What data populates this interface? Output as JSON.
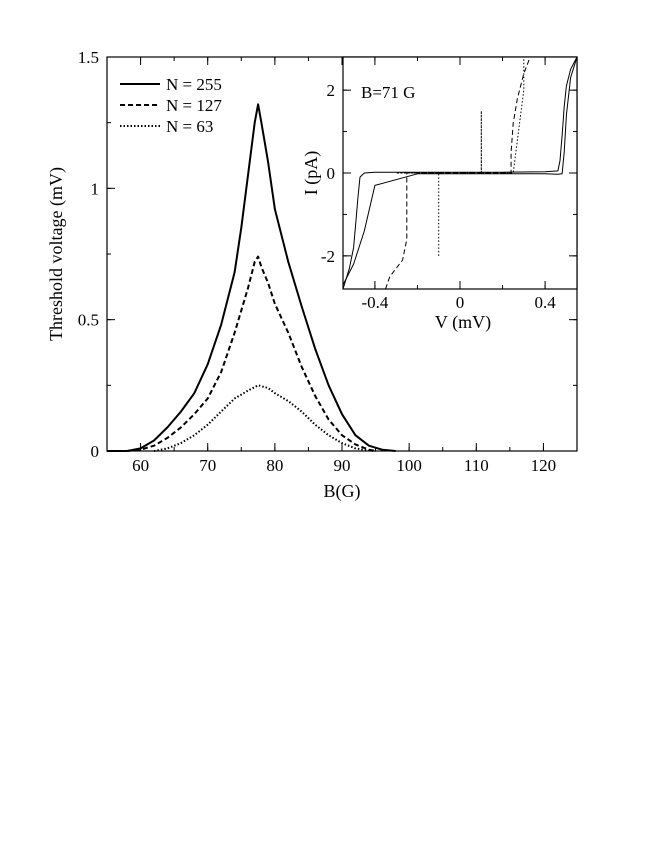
{
  "chart_data": [
    {
      "type": "line",
      "xlabel": "B(G)",
      "ylabel": "Threshold voltage (mV)",
      "xlim": [
        55,
        125
      ],
      "ylim": [
        0,
        1.5
      ],
      "x_ticks": [
        "60",
        "70",
        "80",
        "90",
        "100",
        "110",
        "120"
      ],
      "y_ticks": [
        "0",
        "0.5",
        "1",
        "1.5"
      ],
      "legend_position": "top-left",
      "series": [
        {
          "name": "N = 255",
          "style": "solid",
          "x": [
            55,
            58,
            60,
            62,
            64,
            66,
            68,
            70,
            72,
            74,
            75,
            76,
            77,
            77.5,
            78,
            79,
            80,
            82,
            84,
            86,
            88,
            90,
            92,
            94,
            96,
            98
          ],
          "y": [
            0,
            0,
            0.01,
            0.04,
            0.09,
            0.15,
            0.22,
            0.33,
            0.48,
            0.68,
            0.85,
            1.05,
            1.25,
            1.32,
            1.25,
            1.1,
            0.92,
            0.72,
            0.55,
            0.39,
            0.25,
            0.14,
            0.06,
            0.02,
            0.005,
            0
          ]
        },
        {
          "name": "N = 127",
          "style": "dashed",
          "x": [
            58,
            60,
            62,
            64,
            66,
            68,
            70,
            72,
            74,
            76,
            77,
            77.5,
            78,
            79,
            80,
            82,
            84,
            86,
            88,
            90,
            92,
            94,
            95
          ],
          "y": [
            0,
            0.005,
            0.02,
            0.05,
            0.09,
            0.14,
            0.2,
            0.3,
            0.45,
            0.62,
            0.72,
            0.74,
            0.7,
            0.64,
            0.56,
            0.45,
            0.32,
            0.21,
            0.12,
            0.06,
            0.025,
            0.005,
            0
          ]
        },
        {
          "name": "N = 63",
          "style": "dotted",
          "x": [
            62,
            64,
            66,
            68,
            70,
            72,
            74,
            76,
            77.5,
            79,
            80,
            82,
            84,
            86,
            88,
            90,
            92,
            94,
            95
          ],
          "y": [
            0,
            0.01,
            0.03,
            0.06,
            0.1,
            0.15,
            0.2,
            0.23,
            0.25,
            0.24,
            0.22,
            0.19,
            0.15,
            0.1,
            0.06,
            0.03,
            0.01,
            0.002,
            0
          ]
        }
      ]
    },
    {
      "type": "line",
      "annotation": "B=71 G",
      "xlabel": "V (mV)",
      "ylabel": "I (pA)",
      "xlim": [
        -0.55,
        0.55
      ],
      "ylim": [
        -2.8,
        2.8
      ],
      "x_ticks": [
        "-0.4",
        "0",
        "0.4"
      ],
      "y_ticks": [
        "-2",
        "0",
        "2"
      ],
      "series": [
        {
          "style": "solid",
          "x": [
            -0.55,
            -0.52,
            -0.5,
            -0.49,
            -0.48,
            -0.47,
            -0.45,
            -0.4,
            -0.2,
            0,
            0.2,
            0.4,
            0.46,
            0.47,
            0.48,
            0.49,
            0.5,
            0.52,
            0.55
          ],
          "y": [
            -2.8,
            -2.3,
            -1.8,
            -1.2,
            -0.6,
            -0.1,
            0,
            0.02,
            0.02,
            0.02,
            0.02,
            0.03,
            0.05,
            0.3,
            0.9,
            1.6,
            2.1,
            2.5,
            2.8
          ]
        },
        {
          "style": "solid",
          "x": [
            -0.55,
            -0.5,
            -0.45,
            -0.4,
            -0.2,
            0,
            0.2,
            0.4,
            0.46,
            0.48,
            0.49,
            0.5,
            0.52,
            0.55
          ],
          "y": [
            -2.7,
            -2.2,
            -1.4,
            -0.3,
            -0.02,
            -0.02,
            -0.02,
            -0.02,
            -0.03,
            -0.02,
            0.5,
            1.4,
            2.3,
            2.8
          ],
          "style_note": ""
        },
        {
          "style": "dashed",
          "x": [
            -0.35,
            -0.33,
            -0.3,
            -0.27,
            -0.25,
            -0.25,
            -0.25,
            0.1,
            0.24,
            0.24,
            0.25,
            0.27,
            0.3,
            0.33
          ],
          "y": [
            -2.8,
            -2.5,
            -2.3,
            -2.1,
            -1.6,
            -0.5,
            0,
            0,
            0,
            0.5,
            1.2,
            1.8,
            2.4,
            2.8
          ]
        },
        {
          "style": "dotted",
          "x": [
            -0.1,
            -0.1,
            -0.1,
            -0.3,
            -0.3,
            0.1,
            0.1,
            0.1,
            0.25,
            0.3,
            0.3
          ],
          "y": [
            -2,
            -1,
            0,
            0,
            0,
            0,
            1.5,
            0,
            0,
            2,
            2.8
          ]
        }
      ]
    }
  ]
}
